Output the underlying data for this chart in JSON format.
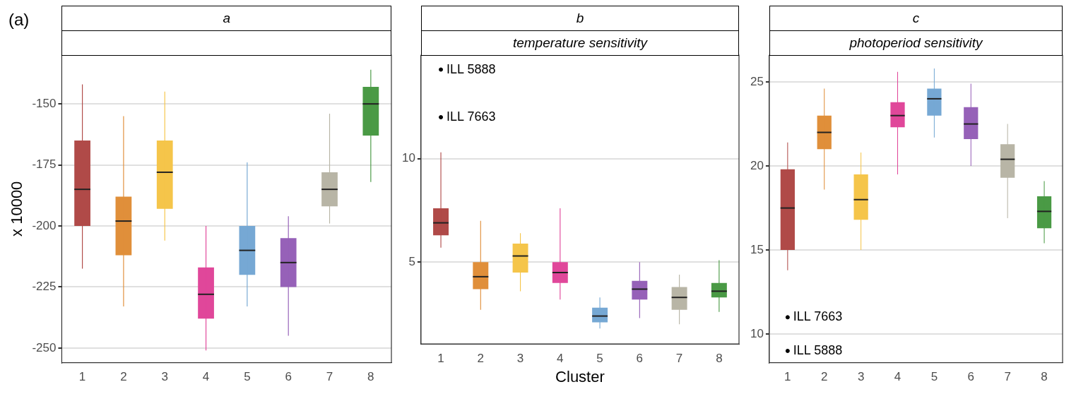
{
  "chart_data": [
    {
      "type": "box",
      "title": "a",
      "ylabel": "x 10000",
      "categories": [
        "1",
        "2",
        "3",
        "4",
        "5",
        "6",
        "7",
        "8"
      ],
      "colors": [
        "#b04a48",
        "#e08f3a",
        "#f5c54a",
        "#e0479a",
        "#76a8d4",
        "#9661b8",
        "#b8b5a6",
        "#4a9a45"
      ],
      "boxes": [
        {
          "low": -217.5,
          "q1": -200,
          "median": -185,
          "q3": -165,
          "high": -142
        },
        {
          "low": -233,
          "q1": -212,
          "median": -198,
          "q3": -188,
          "high": -155
        },
        {
          "low": -206,
          "q1": -193,
          "median": -178,
          "q3": -165,
          "high": -145
        },
        {
          "low": -251,
          "q1": -238,
          "median": -228,
          "q3": -217,
          "high": -200
        },
        {
          "low": -233,
          "q1": -220,
          "median": -210,
          "q3": -200,
          "high": -174
        },
        {
          "low": -245,
          "q1": -225,
          "median": -215,
          "q3": -205,
          "high": -196
        },
        {
          "low": -199,
          "q1": -192,
          "median": -185,
          "q3": -178,
          "high": -154
        },
        {
          "low": -182,
          "q1": -163,
          "median": -150,
          "q3": -143,
          "high": -136
        }
      ],
      "ylim": [
        -256,
        -130
      ],
      "yticks": [
        -250,
        -225,
        -200,
        -175,
        -150
      ],
      "grid": "y",
      "annotations": [
        "(a)"
      ]
    },
    {
      "type": "box",
      "title": "b",
      "subtitle": "temperature sensitivity",
      "xlabel": "Cluster",
      "categories": [
        "1",
        "2",
        "3",
        "4",
        "5",
        "6",
        "7",
        "8"
      ],
      "colors": [
        "#b04a48",
        "#e08f3a",
        "#f5c54a",
        "#e0479a",
        "#76a8d4",
        "#9661b8",
        "#b8b5a6",
        "#4a9a45"
      ],
      "boxes": [
        {
          "low": 5.7,
          "q1": 6.3,
          "median": 6.9,
          "q3": 7.6,
          "high": 10.3,
          "outliers": [
            14.3,
            12.0
          ]
        },
        {
          "low": 2.7,
          "q1": 3.7,
          "median": 4.3,
          "q3": 5.0,
          "high": 7.0
        },
        {
          "low": 3.6,
          "q1": 4.5,
          "median": 5.3,
          "q3": 5.9,
          "high": 6.4
        },
        {
          "low": 3.2,
          "q1": 4.0,
          "median": 4.5,
          "q3": 5.0,
          "high": 7.6
        },
        {
          "low": 1.8,
          "q1": 2.1,
          "median": 2.4,
          "q3": 2.8,
          "high": 3.3
        },
        {
          "low": 2.3,
          "q1": 3.2,
          "median": 3.7,
          "q3": 4.1,
          "high": 5.0
        },
        {
          "low": 2.0,
          "q1": 2.7,
          "median": 3.3,
          "q3": 3.8,
          "high": 4.4
        },
        {
          "low": 2.6,
          "q1": 3.3,
          "median": 3.6,
          "q3": 4.0,
          "high": 5.1
        }
      ],
      "ylim": [
        1.05,
        15
      ],
      "yticks": [
        5,
        10
      ],
      "grid": "y",
      "annotations": [
        "ILL 5888",
        "ILL 7663"
      ]
    },
    {
      "type": "box",
      "title": "c",
      "subtitle": "photoperiod sensitivity",
      "categories": [
        "1",
        "2",
        "3",
        "4",
        "5",
        "6",
        "7",
        "8"
      ],
      "colors": [
        "#b04a48",
        "#e08f3a",
        "#f5c54a",
        "#e0479a",
        "#76a8d4",
        "#9661b8",
        "#b8b5a6",
        "#4a9a45"
      ],
      "boxes": [
        {
          "low": 13.8,
          "q1": 15.0,
          "median": 17.5,
          "q3": 19.8,
          "high": 21.4,
          "outliers": [
            11.0,
            9.0
          ]
        },
        {
          "low": 18.6,
          "q1": 21.0,
          "median": 22.0,
          "q3": 23.0,
          "high": 24.6
        },
        {
          "low": 15.0,
          "q1": 16.8,
          "median": 18.0,
          "q3": 19.5,
          "high": 20.8
        },
        {
          "low": 19.5,
          "q1": 22.3,
          "median": 23.0,
          "q3": 23.8,
          "high": 25.6
        },
        {
          "low": 21.7,
          "q1": 23.0,
          "median": 24.0,
          "q3": 24.6,
          "high": 25.8
        },
        {
          "low": 20.0,
          "q1": 21.6,
          "median": 22.5,
          "q3": 23.5,
          "high": 24.9
        },
        {
          "low": 16.9,
          "q1": 19.3,
          "median": 20.4,
          "q3": 21.3,
          "high": 22.5
        },
        {
          "low": 15.4,
          "q1": 16.3,
          "median": 17.3,
          "q3": 18.2,
          "high": 19.1
        }
      ],
      "ylim": [
        8.3,
        26.6
      ],
      "yticks": [
        10,
        15,
        20,
        25
      ],
      "grid": "y",
      "annotations": [
        "ILL 7663",
        "ILL 5888"
      ]
    }
  ]
}
